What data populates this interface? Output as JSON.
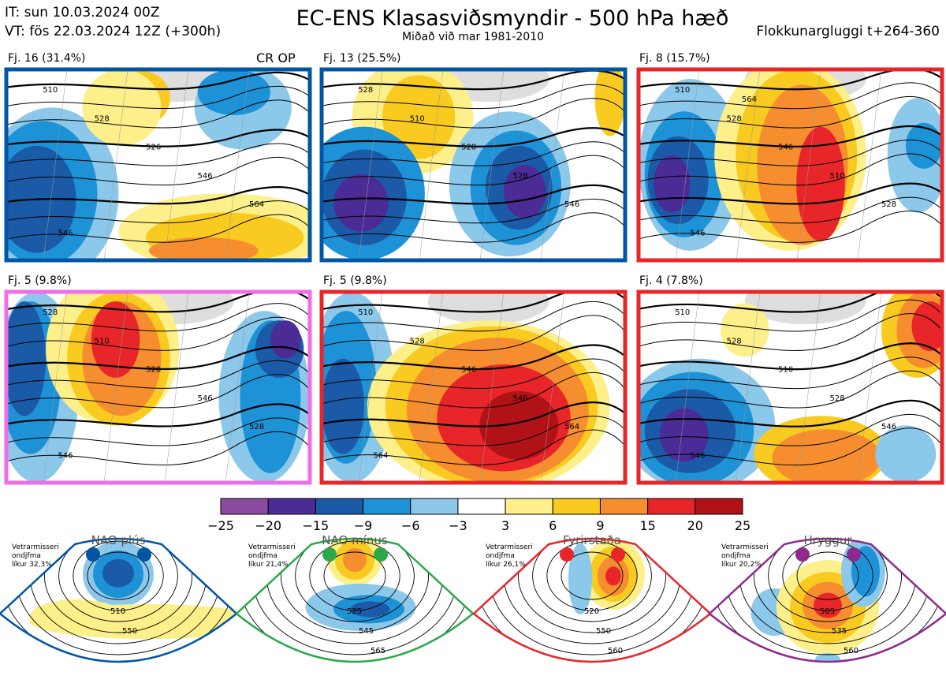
{
  "header": {
    "issue_line": "IT: sun 10.03.2024 00Z",
    "valid_line": "VT: fös 22.03.2024 12Z  (+300h)",
    "title": "EC-ENS Klasasviðsmyndir - 500 hPa hæð",
    "subtitle": "Miðað við mar 1981-2010",
    "window": "Flokkunargluggi t+264-360"
  },
  "maps": [
    {
      "label": "Fj. 16 (31.4%)",
      "tag": "CR OP",
      "frame": "#0055a5",
      "contours": [
        "510",
        "528",
        "526",
        "546",
        "564",
        "546"
      ]
    },
    {
      "label": "Fj. 13 (25.5%)",
      "tag": "",
      "frame": "#0055a5",
      "contours": [
        "528",
        "510",
        "528",
        "528",
        "546"
      ]
    },
    {
      "label": "Fj. 8 (15.7%)",
      "tag": "",
      "frame": "#e8262a",
      "contours": [
        "510",
        "528",
        "546",
        "510",
        "528",
        "546",
        "564"
      ]
    },
    {
      "label": "Fj. 5 (9.8%)",
      "tag": "",
      "frame": "#ee6ee9",
      "contours": [
        "528",
        "510",
        "528",
        "546",
        "528",
        "546"
      ]
    },
    {
      "label": "Fj. 5 (9.8%)",
      "tag": "",
      "frame": "#e8262a",
      "contours": [
        "510",
        "528",
        "546",
        "546",
        "564",
        "564"
      ]
    },
    {
      "label": "Fj. 4 (7.8%)",
      "tag": "",
      "frame": "#e8262a",
      "contours": [
        "510",
        "528",
        "510",
        "528",
        "546",
        "546"
      ]
    }
  ],
  "colorbar": {
    "ticks": [
      "−25",
      "−20",
      "−15",
      "−9",
      "−6",
      "−3",
      "3",
      "6",
      "9",
      "15",
      "20",
      "25"
    ],
    "colors": [
      "#8a4aa0",
      "#4b2c96",
      "#1a5aa6",
      "#1e92d6",
      "#8cc8ea",
      "#ffffff",
      "#fdf08a",
      "#f9cb20",
      "#f68e2f",
      "#e8262a",
      "#b11218"
    ]
  },
  "patterns": [
    {
      "name": "NAO plús",
      "line1": "Vetrarmisseri",
      "line2": "ondjfma",
      "line3": "líkur 32,3%",
      "color": "#0055a5",
      "contours": [
        "510",
        "550"
      ]
    },
    {
      "name": "NAO mínus",
      "line1": "Vetrarmisseri",
      "line2": "ondjfma",
      "line3": "líkur 21,4%",
      "color": "#2aa84a",
      "contours": [
        "525",
        "545",
        "565"
      ]
    },
    {
      "name": "Fyrirstaða",
      "line1": "Vetrarmisseri",
      "line2": "ondjfma",
      "line3": "líkur 26,1%",
      "color": "#e8262a",
      "contours": [
        "520",
        "550",
        "560"
      ]
    },
    {
      "name": "Hryggur",
      "line1": "Vetrarmisseri",
      "line2": "ondjfma",
      "line3": "líkur 20,2%",
      "color": "#8e2a8e",
      "contours": [
        "505",
        "535",
        "560"
      ]
    }
  ]
}
